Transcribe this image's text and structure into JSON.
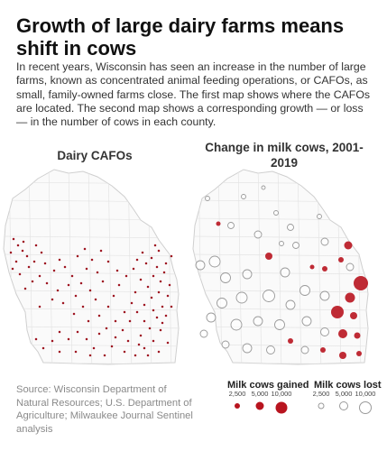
{
  "title": "Growth of large dairy farms means shift in cows",
  "intro": "In recent years, Wisconsin has seen an increase in the number of large farms, known as concentrated animal feeding operations, or CAFOs, as small, family-owned farms close. The first map shows where the CAFOs are located. The second map shows a corresponding growth — or loss — in the number of cows in each county.",
  "map_left": {
    "title": "Dairy CAFOs"
  },
  "map_right": {
    "title": "Change in milk cows, 2001-2019"
  },
  "source": "Source: Wisconsin Department of Natural Resources; U.S. Department of Agriculture; Milwaukee Journal Sentinel analysis",
  "legend": {
    "gained": {
      "label": "Milk cows gained",
      "values": [
        "2,500",
        "5,000",
        "10,000"
      ]
    },
    "lost": {
      "label": "Milk cows lost",
      "values": [
        "2,500",
        "5,000",
        "10,000"
      ]
    }
  },
  "colors": {
    "gain": "#b8141f",
    "lost_stroke": "#9a9a9a",
    "cafo_dot": "#9e1420",
    "county_border": "#e4e4e4",
    "state_outline": "#cfcfcf"
  }
}
